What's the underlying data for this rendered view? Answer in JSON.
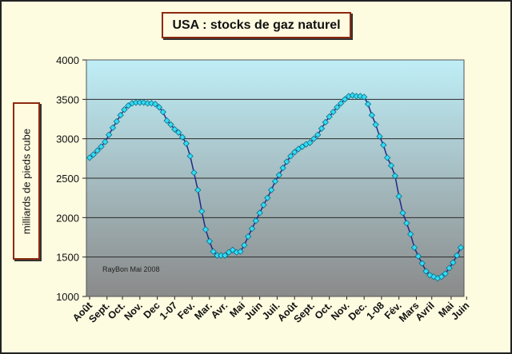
{
  "title": "USA : stocks de gaz naturel",
  "watermark": "RayBon Mai 2008",
  "colors": {
    "line": "#1f2a8a",
    "marker": "#33ddf2",
    "marker_edge": "#0a6f8c",
    "plot_top": "#bfeef7",
    "plot_bottom": "#8a8a8a"
  },
  "chart_data": {
    "type": "line",
    "title": "USA : stocks de gaz naturel",
    "xlabel": "",
    "ylabel": "milliards de pieds cube",
    "ylim": [
      1000,
      4000
    ],
    "yticks": [
      1000,
      1500,
      2000,
      2500,
      3000,
      3500,
      4000
    ],
    "grid": true,
    "x_tick_labels": [
      "Août",
      "Sept.",
      "Oct.",
      "Nov.",
      "Dec",
      "1-07",
      "Fev.",
      "Mar.",
      "Avr.",
      "Mai",
      "Juin",
      "Juil.",
      "Août",
      "Sept.",
      "Oct.",
      "Nov.",
      "Dec.",
      "1-08",
      "Fév.",
      "Mars",
      "Avril",
      "Mai",
      "Juin"
    ],
    "x_tick_weeks": [
      1,
      5.5,
      9.5,
      14,
      18.5,
      23,
      27.5,
      32,
      36,
      40.5,
      45,
      49.5,
      54,
      58.5,
      63,
      67.5,
      72,
      76.5,
      81,
      85.5,
      89.5,
      94.5,
      98.5
    ],
    "series": [
      {
        "values": [
          2760,
          2800,
          2850,
          2900,
          2960,
          3050,
          3140,
          3220,
          3300,
          3370,
          3420,
          3450,
          3460,
          3460,
          3460,
          3450,
          3450,
          3440,
          3400,
          3340,
          3230,
          3180,
          3120,
          3080,
          3020,
          2940,
          2780,
          2570,
          2350,
          2080,
          1850,
          1700,
          1570,
          1520,
          1520,
          1520,
          1560,
          1590,
          1560,
          1570,
          1650,
          1760,
          1860,
          1960,
          2060,
          2160,
          2250,
          2350,
          2460,
          2540,
          2630,
          2710,
          2780,
          2830,
          2870,
          2900,
          2930,
          2950,
          3000,
          3050,
          3130,
          3210,
          3280,
          3340,
          3400,
          3450,
          3500,
          3540,
          3550,
          3540,
          3540,
          3530,
          3440,
          3300,
          3180,
          3030,
          2920,
          2760,
          2660,
          2530,
          2270,
          2060,
          1930,
          1790,
          1620,
          1510,
          1420,
          1320,
          1270,
          1250,
          1230,
          1250,
          1290,
          1360,
          1430,
          1520,
          1620
        ]
      }
    ]
  }
}
